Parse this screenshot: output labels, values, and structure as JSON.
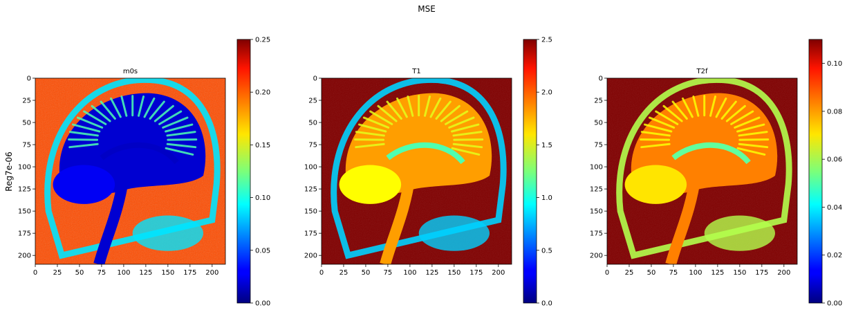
{
  "figure": {
    "suptitle": "MSE",
    "row_label": "Reg7e-06"
  },
  "colormap": "jet",
  "chart_data": [
    {
      "type": "heatmap",
      "title": "m0s",
      "content": "sagittal brain MRI parameter map",
      "xlim": [
        0,
        215
      ],
      "ylim": [
        210,
        0
      ],
      "xticks": [
        "0",
        "25",
        "50",
        "75",
        "100",
        "125",
        "150",
        "175",
        "200"
      ],
      "yticks": [
        "0",
        "25",
        "50",
        "75",
        "100",
        "125",
        "150",
        "175",
        "200"
      ],
      "colorbar": {
        "min": 0.0,
        "max": 0.25,
        "ticks": [
          "0.00",
          "0.05",
          "0.10",
          "0.15",
          "0.20",
          "0.25"
        ]
      },
      "background_level": 0.8,
      "brain_level": 0.08,
      "cortex_level": 0.45,
      "outer_ring_level": 0.35
    },
    {
      "type": "heatmap",
      "title": "T1",
      "content": "sagittal brain MRI parameter map",
      "xlim": [
        0,
        215
      ],
      "ylim": [
        210,
        0
      ],
      "xticks": [
        "0",
        "25",
        "50",
        "75",
        "100",
        "125",
        "150",
        "175",
        "200"
      ],
      "yticks": [
        "0",
        "25",
        "50",
        "75",
        "100",
        "125",
        "150",
        "175",
        "200"
      ],
      "colorbar": {
        "min": 0.0,
        "max": 2.5,
        "ticks": [
          "0.0",
          "0.5",
          "1.0",
          "1.5",
          "2.0",
          "2.5"
        ]
      },
      "background_level": 1.0,
      "brain_level": 0.72,
      "cortex_level": 0.6,
      "outer_ring_level": 0.33
    },
    {
      "type": "heatmap",
      "title": "T2f",
      "content": "sagittal brain MRI parameter map",
      "xlim": [
        0,
        215
      ],
      "ylim": [
        210,
        0
      ],
      "xticks": [
        "0",
        "25",
        "50",
        "75",
        "100",
        "125",
        "150",
        "175",
        "200"
      ],
      "yticks": [
        "0",
        "25",
        "50",
        "75",
        "100",
        "125",
        "150",
        "175",
        "200"
      ],
      "colorbar": {
        "min": 0.0,
        "max": 0.11,
        "ticks": [
          "0.00",
          "0.02",
          "0.04",
          "0.06",
          "0.08",
          "0.10"
        ]
      },
      "background_level": 1.0,
      "brain_level": 0.75,
      "cortex_level": 0.62,
      "outer_ring_level": 0.55
    }
  ]
}
